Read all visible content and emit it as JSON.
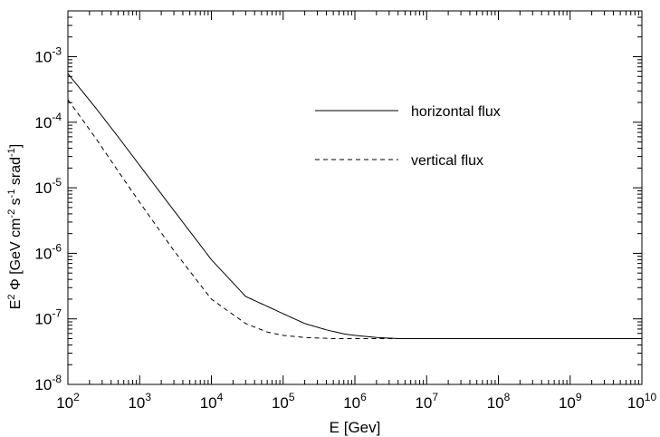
{
  "chart_data": {
    "type": "line",
    "title": "",
    "xlabel": "E [Gev]",
    "ylabel": "E² Φ [GeV cm⁻² s⁻¹ srad⁻¹]",
    "ylabel_parts": {
      "pre": "E",
      "sup1": "2",
      "phi": " Φ [GeV cm",
      "sup2": "-2",
      "mid": " s",
      "sup3": "-1",
      "post1": " srad",
      "sup4": "-1",
      "post2": "]"
    },
    "x_scale": "log",
    "y_scale": "log",
    "xlim": [
      100,
      10000000000
    ],
    "ylim": [
      1e-08,
      0.005
    ],
    "x_ticks": [
      {
        "base": "10",
        "exp": "2",
        "value": 100
      },
      {
        "base": "10",
        "exp": "3",
        "value": 1000
      },
      {
        "base": "10",
        "exp": "4",
        "value": 10000
      },
      {
        "base": "10",
        "exp": "5",
        "value": 100000
      },
      {
        "base": "10",
        "exp": "6",
        "value": 1000000
      },
      {
        "base": "10",
        "exp": "7",
        "value": 10000000
      },
      {
        "base": "10",
        "exp": "8",
        "value": 100000000
      },
      {
        "base": "10",
        "exp": "9",
        "value": 1000000000
      },
      {
        "base": "10",
        "exp": "10",
        "value": 10000000000
      }
    ],
    "y_ticks": [
      {
        "base": "10",
        "exp": "-8",
        "value": 1e-08
      },
      {
        "base": "10",
        "exp": "-7",
        "value": 1e-07
      },
      {
        "base": "10",
        "exp": "-6",
        "value": 1e-06
      },
      {
        "base": "10",
        "exp": "-5",
        "value": 1e-05
      },
      {
        "base": "10",
        "exp": "-4",
        "value": 0.0001
      },
      {
        "base": "10",
        "exp": "-3",
        "value": 0.001
      }
    ],
    "grid": false,
    "legend_position": "top-right",
    "series": [
      {
        "name": "horizontal flux",
        "style": "solid",
        "color": "#000000",
        "x": [
          100,
          150,
          250,
          500,
          1000,
          3000,
          10000,
          30000,
          100000,
          200000,
          400000,
          700000,
          1000000,
          2000000,
          4000000,
          10000000,
          100000000,
          1000000000,
          10000000000
        ],
        "y": [
          0.00055,
          0.00032,
          0.00016,
          6e-05,
          2.2e-05,
          4.5e-06,
          8e-07,
          2.2e-07,
          1.2e-07,
          8.5e-08,
          6.8e-08,
          5.9e-08,
          5.6e-08,
          5.2e-08,
          5e-08,
          5e-08,
          5e-08,
          5e-08,
          5e-08
        ]
      },
      {
        "name": "vertical flux",
        "style": "dashed",
        "color": "#000000",
        "x": [
          100,
          150,
          250,
          500,
          1000,
          3000,
          10000,
          30000,
          60000,
          100000,
          200000,
          500000,
          1000000,
          10000000,
          100000000,
          1000000000,
          10000000000
        ],
        "y": [
          0.00022,
          0.00012,
          5.5e-05,
          1.8e-05,
          6e-06,
          1.1e-06,
          2e-07,
          8.5e-08,
          6.3e-08,
          5.6e-08,
          5.2e-08,
          5e-08,
          5e-08,
          5e-08,
          5e-08,
          5e-08,
          5e-08
        ]
      }
    ]
  }
}
